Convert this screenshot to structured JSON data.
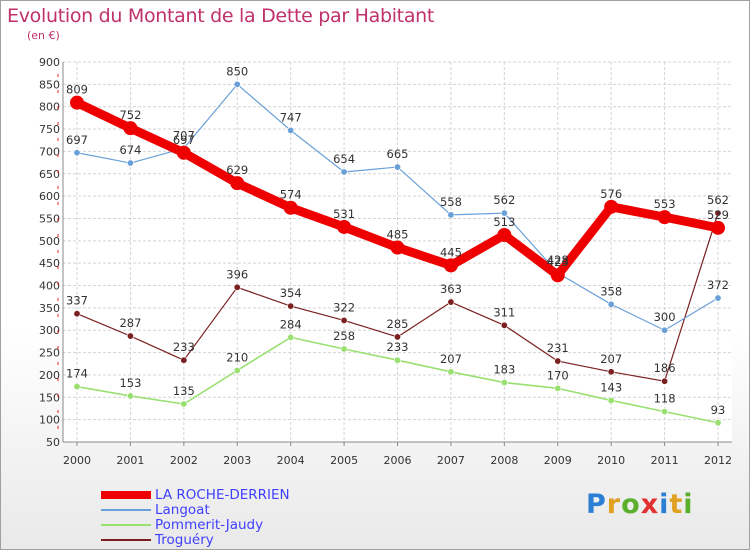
{
  "header": {
    "title": "Evolution du Montant de la Dette par Habitant",
    "subtitle": "(en €)"
  },
  "logo": {
    "letters": [
      "P",
      "r",
      "o",
      "x",
      "i",
      "t",
      "i"
    ],
    "colors": [
      "#2a7fd4",
      "#e0a020",
      "#5ab02a",
      "#e03030",
      "#2a7fd4",
      "#e0a020",
      "#5ab02a"
    ]
  },
  "chart_data": {
    "type": "line",
    "categories": [
      "2000",
      "2001",
      "2002",
      "2003",
      "2004",
      "2005",
      "2006",
      "2007",
      "2008",
      "2009",
      "2010",
      "2011",
      "2012"
    ],
    "ylim": [
      50,
      900
    ],
    "yticks": [
      50,
      100,
      150,
      200,
      250,
      300,
      350,
      400,
      450,
      500,
      550,
      600,
      650,
      700,
      750,
      800,
      850,
      900
    ],
    "grid": true,
    "series": [
      {
        "name": "LA ROCHE-DERRIEN",
        "color": "#ee0000",
        "values": [
          809,
          752,
          697,
          629,
          574,
          531,
          485,
          445,
          513,
          423,
          576,
          553,
          529
        ],
        "width": 9,
        "marker": 7,
        "labels": [
          "809",
          "752",
          "697",
          "629",
          "574",
          "531",
          "485",
          "445",
          "513",
          "423",
          "576",
          "553",
          "529"
        ]
      },
      {
        "name": "Langoat",
        "color": "#6aa0d8",
        "values": [
          697,
          674,
          707,
          850,
          747,
          654,
          665,
          558,
          562,
          428,
          358,
          300,
          372
        ],
        "width": 1.2,
        "marker": 3.2,
        "labels": [
          "697",
          "674",
          "707",
          "850",
          "747",
          "654",
          "665",
          "558",
          "562",
          "428",
          "358",
          "300",
          "372"
        ]
      },
      {
        "name": "Pommerit-Jaudy",
        "color": "#99e070",
        "values": [
          174,
          153,
          135,
          210,
          284,
          258,
          233,
          207,
          183,
          170,
          143,
          118,
          93
        ],
        "width": 1.6,
        "marker": 3.2,
        "labels": [
          "174",
          "153",
          "135",
          "210",
          "284",
          "258",
          "233",
          "207",
          "183",
          "170",
          "143",
          "118",
          "93"
        ]
      },
      {
        "name": "Troguéry",
        "color": "#7a2020",
        "values": [
          337,
          287,
          233,
          396,
          354,
          322,
          285,
          363,
          311,
          231,
          207,
          186,
          562
        ],
        "width": 1.2,
        "marker": 3.2,
        "labels": [
          "337",
          "287",
          "233",
          "396",
          "354",
          "322",
          "285",
          "363",
          "311",
          "231",
          "207",
          "186",
          "562"
        ]
      }
    ],
    "legend": "bottom-left"
  }
}
